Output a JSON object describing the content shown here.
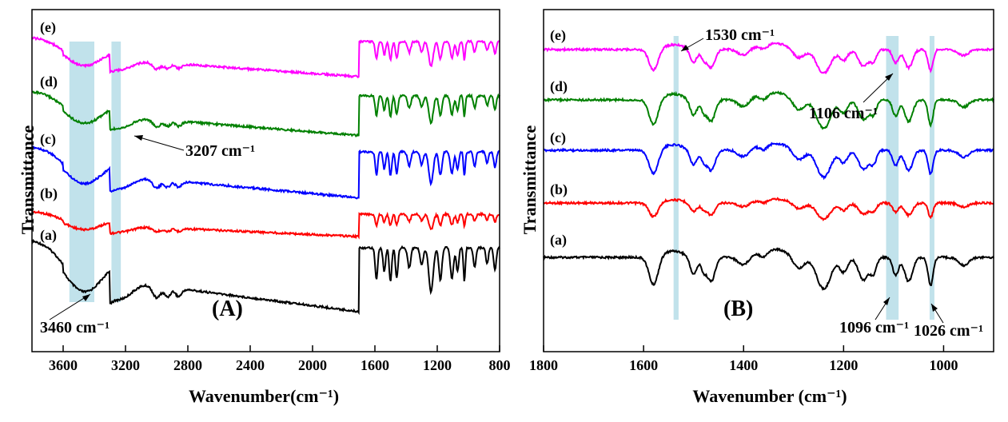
{
  "chart_data": [
    {
      "panel": "(A)",
      "type": "line",
      "xlabel": "Wavenumber(cm⁻¹)",
      "ylabel": "Transmittance",
      "xlim": [
        3800,
        800
      ],
      "x_reversed": true,
      "xticks": [
        3600,
        3200,
        2800,
        2400,
        2000,
        1600,
        1200,
        800
      ],
      "xtick_labels": [
        "3600",
        "3200",
        "2800",
        "2400",
        "2000",
        "1600",
        "1200",
        "800"
      ],
      "series_labels": [
        "(a)",
        "(b)",
        "(c)",
        "(d)",
        "(e)"
      ],
      "series_colors": [
        "#000000",
        "#ff0000",
        "#0000ff",
        "#008000",
        "#ff00ff"
      ],
      "highlight_bands": [
        [
          3560,
          3400
        ],
        [
          3290,
          3230
        ]
      ],
      "annotations": [
        {
          "text": "3460 cm⁻¹",
          "x": 3460
        },
        {
          "text": "3207 cm⁻¹",
          "x": 3207
        }
      ]
    },
    {
      "panel": "(B)",
      "type": "line",
      "xlabel": "Wavenumber (cm⁻¹)",
      "ylabel": "Transmittance",
      "xlim": [
        1800,
        900
      ],
      "x_reversed": true,
      "xticks": [
        1800,
        1600,
        1400,
        1200,
        1000
      ],
      "xtick_labels": [
        "1800",
        "1600",
        "1400",
        "1200",
        "1000"
      ],
      "series_labels": [
        "(a)",
        "(b)",
        "(c)",
        "(d)",
        "(e)"
      ],
      "series_colors": [
        "#000000",
        "#ff0000",
        "#0000ff",
        "#008000",
        "#ff00ff"
      ],
      "highlight_bands": [
        [
          1540,
          1530
        ],
        [
          1115,
          1090
        ],
        [
          1028,
          1022
        ]
      ],
      "annotations": [
        {
          "text": "1530 cm⁻¹",
          "x": 1530
        },
        {
          "text": "1106 cm⁻¹",
          "x": 1106
        },
        {
          "text": "1096 cm⁻¹",
          "x": 1096
        },
        {
          "text": "1026 cm⁻¹",
          "x": 1026
        }
      ]
    }
  ]
}
